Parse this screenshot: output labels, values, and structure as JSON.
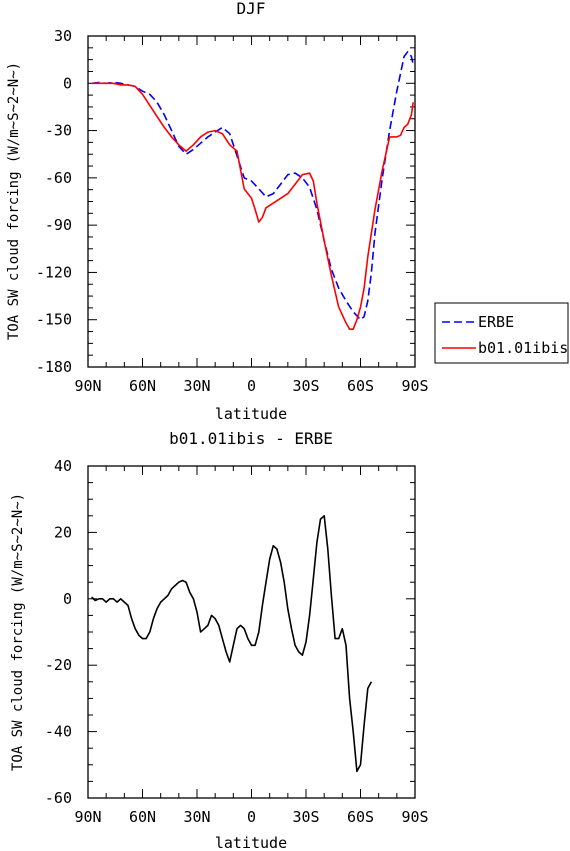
{
  "chart_data": [
    {
      "type": "line",
      "title": "DJF",
      "xlabel": "latitude",
      "ylabel": "TOA SW cloud forcing (W/m~S~2~N~)",
      "xlim": [
        -90,
        90
      ],
      "ylim": [
        -180,
        30
      ],
      "x_ticks": [
        {
          "value": -90,
          "label": "90N"
        },
        {
          "value": -60,
          "label": "60N"
        },
        {
          "value": -30,
          "label": "30N"
        },
        {
          "value": 0,
          "label": "0"
        },
        {
          "value": 30,
          "label": "30S"
        },
        {
          "value": 60,
          "label": "60S"
        },
        {
          "value": 90,
          "label": "90S"
        }
      ],
      "y_ticks": [
        30,
        0,
        -30,
        -60,
        -90,
        -120,
        -150,
        -180
      ],
      "legend_position": "right",
      "series": [
        {
          "name": "ERBE",
          "color": "#0000ff",
          "dash": "dashed",
          "points": [
            [
              -88,
              0
            ],
            [
              -84,
              0.5
            ],
            [
              -80,
              0
            ],
            [
              -76,
              0.5
            ],
            [
              -72,
              0
            ],
            [
              -68,
              -1
            ],
            [
              -64,
              -2
            ],
            [
              -60,
              -5
            ],
            [
              -56,
              -7
            ],
            [
              -52,
              -12
            ],
            [
              -48,
              -20
            ],
            [
              -44,
              -30
            ],
            [
              -40,
              -40
            ],
            [
              -36,
              -45
            ],
            [
              -32,
              -42
            ],
            [
              -28,
              -38
            ],
            [
              -24,
              -34
            ],
            [
              -20,
              -31
            ],
            [
              -16,
              -28
            ],
            [
              -12,
              -32
            ],
            [
              -8,
              -46
            ],
            [
              -4,
              -60
            ],
            [
              0,
              -62
            ],
            [
              4,
              -67
            ],
            [
              8,
              -72
            ],
            [
              12,
              -70
            ],
            [
              16,
              -64
            ],
            [
              20,
              -58
            ],
            [
              24,
              -57
            ],
            [
              28,
              -60
            ],
            [
              32,
              -66
            ],
            [
              36,
              -80
            ],
            [
              40,
              -100
            ],
            [
              44,
              -118
            ],
            [
              48,
              -130
            ],
            [
              52,
              -138
            ],
            [
              56,
              -145
            ],
            [
              60,
              -150
            ],
            [
              62,
              -148
            ],
            [
              64,
              -138
            ],
            [
              66,
              -120
            ],
            [
              68,
              -95
            ],
            [
              72,
              -60
            ],
            [
              76,
              -30
            ],
            [
              80,
              -5
            ],
            [
              84,
              17
            ],
            [
              86,
              20
            ],
            [
              88,
              17
            ],
            [
              89,
              12
            ]
          ]
        },
        {
          "name": "b01.01ibis",
          "color": "#ff0000",
          "dash": "solid",
          "points": [
            [
              -88,
              0
            ],
            [
              -84,
              0
            ],
            [
              -80,
              0
            ],
            [
              -76,
              0
            ],
            [
              -72,
              -1
            ],
            [
              -68,
              -1
            ],
            [
              -64,
              -2
            ],
            [
              -60,
              -7
            ],
            [
              -56,
              -14
            ],
            [
              -52,
              -21
            ],
            [
              -48,
              -28
            ],
            [
              -44,
              -34
            ],
            [
              -40,
              -39
            ],
            [
              -36,
              -43
            ],
            [
              -32,
              -39
            ],
            [
              -28,
              -34
            ],
            [
              -24,
              -31
            ],
            [
              -20,
              -30
            ],
            [
              -16,
              -32
            ],
            [
              -12,
              -39
            ],
            [
              -8,
              -43
            ],
            [
              -4,
              -67
            ],
            [
              0,
              -73
            ],
            [
              2,
              -80
            ],
            [
              4,
              -88
            ],
            [
              6,
              -85
            ],
            [
              8,
              -79
            ],
            [
              12,
              -76
            ],
            [
              16,
              -73
            ],
            [
              20,
              -70
            ],
            [
              24,
              -64
            ],
            [
              28,
              -58
            ],
            [
              32,
              -57
            ],
            [
              34,
              -62
            ],
            [
              36,
              -76
            ],
            [
              40,
              -100
            ],
            [
              44,
              -122
            ],
            [
              48,
              -142
            ],
            [
              52,
              -152
            ],
            [
              54,
              -156
            ],
            [
              56,
              -156
            ],
            [
              58,
              -150
            ],
            [
              60,
              -142
            ],
            [
              62,
              -130
            ],
            [
              64,
              -110
            ],
            [
              66,
              -95
            ],
            [
              68,
              -80
            ],
            [
              72,
              -55
            ],
            [
              76,
              -34
            ],
            [
              80,
              -34
            ],
            [
              82,
              -33
            ],
            [
              84,
              -28
            ],
            [
              86,
              -26
            ],
            [
              88,
              -20
            ],
            [
              89,
              -12
            ]
          ]
        }
      ]
    },
    {
      "type": "line",
      "title": "b01.01ibis - ERBE",
      "xlabel": "latitude",
      "ylabel": "TOA SW cloud forcing (W/m~S~2~N~)",
      "xlim": [
        -90,
        90
      ],
      "ylim": [
        -60,
        40
      ],
      "x_ticks": [
        {
          "value": -90,
          "label": "90N"
        },
        {
          "value": -60,
          "label": "60N"
        },
        {
          "value": -30,
          "label": "30N"
        },
        {
          "value": 0,
          "label": "0"
        },
        {
          "value": 30,
          "label": "30S"
        },
        {
          "value": 60,
          "label": "60S"
        },
        {
          "value": 90,
          "label": "90S"
        }
      ],
      "y_ticks": [
        40,
        20,
        0,
        -20,
        -40,
        -60
      ],
      "series": [
        {
          "color": "#000000",
          "dash": "solid",
          "points": [
            [
              -88,
              0.5
            ],
            [
              -86,
              -0.5
            ],
            [
              -84,
              0
            ],
            [
              -82,
              0
            ],
            [
              -80,
              -1
            ],
            [
              -78,
              0
            ],
            [
              -76,
              0
            ],
            [
              -74,
              -1
            ],
            [
              -72,
              0
            ],
            [
              -70,
              -1
            ],
            [
              -68,
              -2
            ],
            [
              -66,
              -6
            ],
            [
              -64,
              -9
            ],
            [
              -62,
              -11
            ],
            [
              -60,
              -12
            ],
            [
              -58,
              -12
            ],
            [
              -56,
              -10
            ],
            [
              -54,
              -6
            ],
            [
              -52,
              -3
            ],
            [
              -50,
              -1
            ],
            [
              -48,
              0
            ],
            [
              -46,
              1
            ],
            [
              -44,
              3
            ],
            [
              -42,
              4
            ],
            [
              -40,
              5
            ],
            [
              -38,
              5.5
            ],
            [
              -36,
              5
            ],
            [
              -34,
              2
            ],
            [
              -32,
              0
            ],
            [
              -30,
              -4
            ],
            [
              -28,
              -10
            ],
            [
              -26,
              -9
            ],
            [
              -24,
              -8
            ],
            [
              -22,
              -5
            ],
            [
              -20,
              -6
            ],
            [
              -18,
              -8
            ],
            [
              -16,
              -12
            ],
            [
              -14,
              -16
            ],
            [
              -12,
              -19
            ],
            [
              -10,
              -14
            ],
            [
              -8,
              -9
            ],
            [
              -6,
              -8
            ],
            [
              -4,
              -9
            ],
            [
              -2,
              -12
            ],
            [
              0,
              -14
            ],
            [
              2,
              -14
            ],
            [
              4,
              -10
            ],
            [
              6,
              -2
            ],
            [
              8,
              5
            ],
            [
              10,
              12
            ],
            [
              12,
              16
            ],
            [
              14,
              15
            ],
            [
              16,
              11
            ],
            [
              18,
              5
            ],
            [
              20,
              -3
            ],
            [
              22,
              -9
            ],
            [
              24,
              -14
            ],
            [
              26,
              -16
            ],
            [
              28,
              -17
            ],
            [
              30,
              -13
            ],
            [
              32,
              -5
            ],
            [
              34,
              6
            ],
            [
              36,
              17
            ],
            [
              38,
              24
            ],
            [
              40,
              25
            ],
            [
              42,
              15
            ],
            [
              44,
              1
            ],
            [
              46,
              -12
            ],
            [
              48,
              -12
            ],
            [
              50,
              -9
            ],
            [
              52,
              -14
            ],
            [
              54,
              -30
            ],
            [
              56,
              -40
            ],
            [
              58,
              -52
            ],
            [
              60,
              -50
            ],
            [
              62,
              -38
            ],
            [
              64,
              -27
            ],
            [
              66,
              -25
            ]
          ]
        }
      ]
    }
  ]
}
